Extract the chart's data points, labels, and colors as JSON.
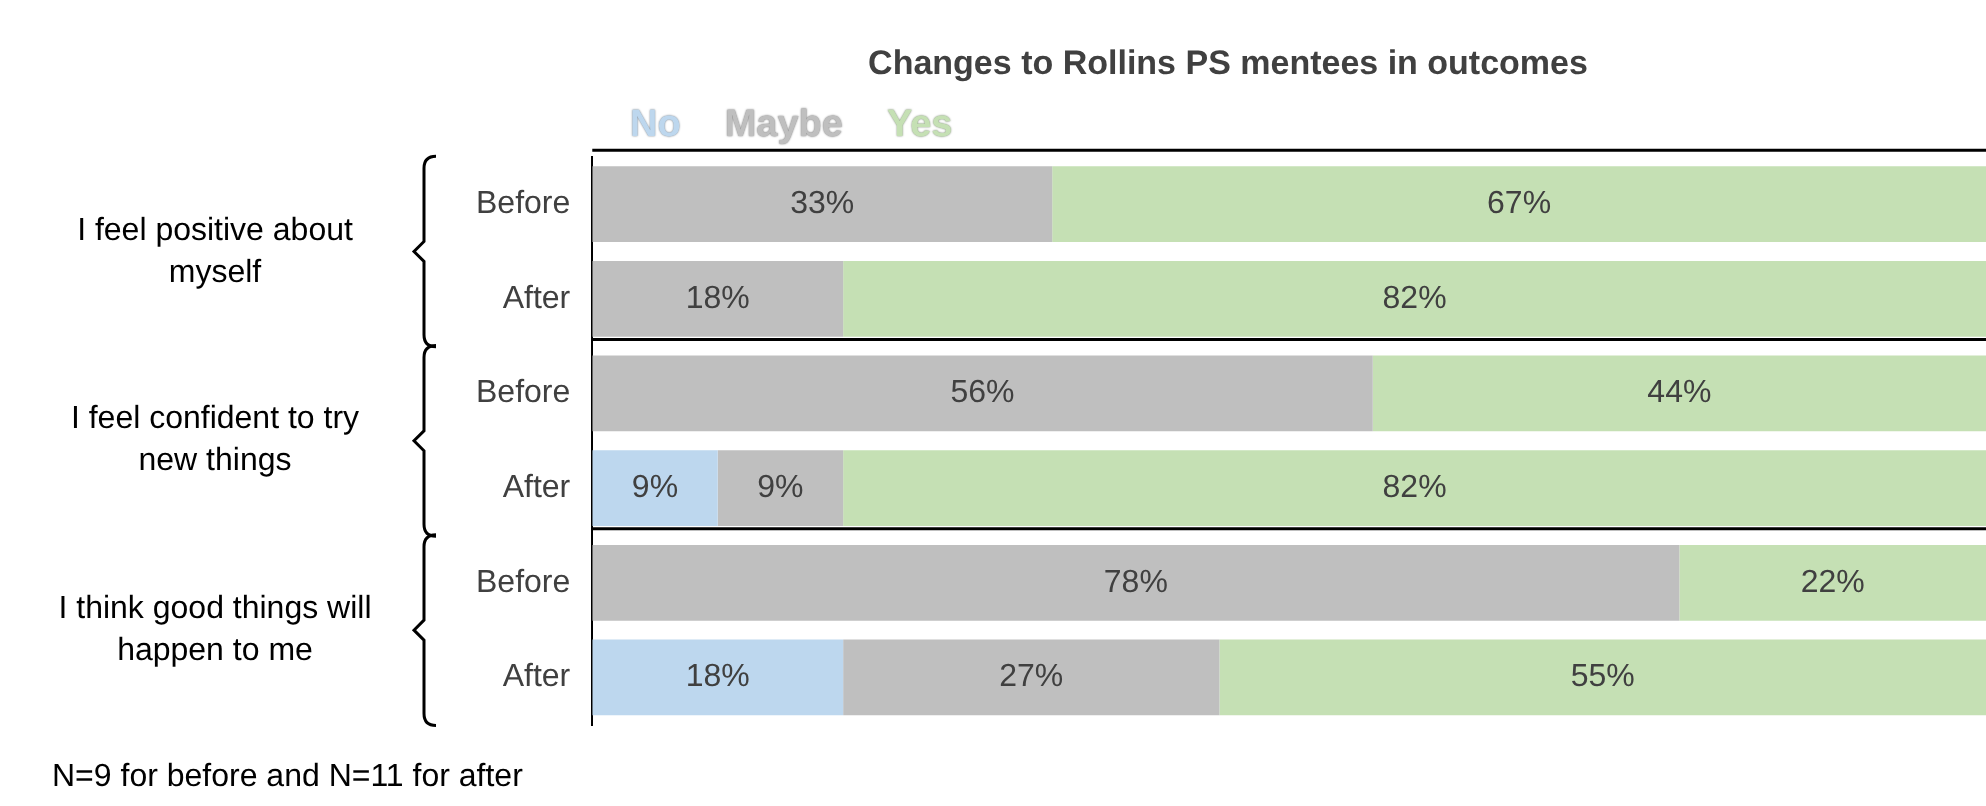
{
  "chart_data": {
    "type": "bar",
    "orientation": "horizontal",
    "stacked": true,
    "title": "Changes to Rollins PS mentees in outcomes",
    "categories": [
      "Before",
      "After",
      "Before",
      "After",
      "Before",
      "After"
    ],
    "series": [
      {
        "name": "No",
        "color": "#bdd7ee",
        "values": [
          null,
          null,
          null,
          9,
          null,
          18
        ],
        "value_labels": [
          null,
          null,
          null,
          "9%",
          null,
          "18%"
        ]
      },
      {
        "name": "Maybe",
        "color": "#bfbfbf",
        "values": [
          33,
          18,
          56,
          9,
          78,
          27
        ],
        "value_labels": [
          "33%",
          "18%",
          "56%",
          "9%",
          "78%",
          "27%"
        ]
      },
      {
        "name": "Yes",
        "color": "#c5e0b4",
        "values": [
          67,
          82,
          44,
          82,
          22,
          55
        ],
        "value_labels": [
          "67%",
          "82%",
          "44%",
          "82%",
          "22%",
          "55%"
        ]
      }
    ],
    "tick_labels": "y",
    "legend": "top",
    "annotations": [
      "I feel positive about myself",
      "I feel confident to try new things",
      "I think good things will happen to me",
      "N=9 for before and N=11 for after"
    ]
  }
}
